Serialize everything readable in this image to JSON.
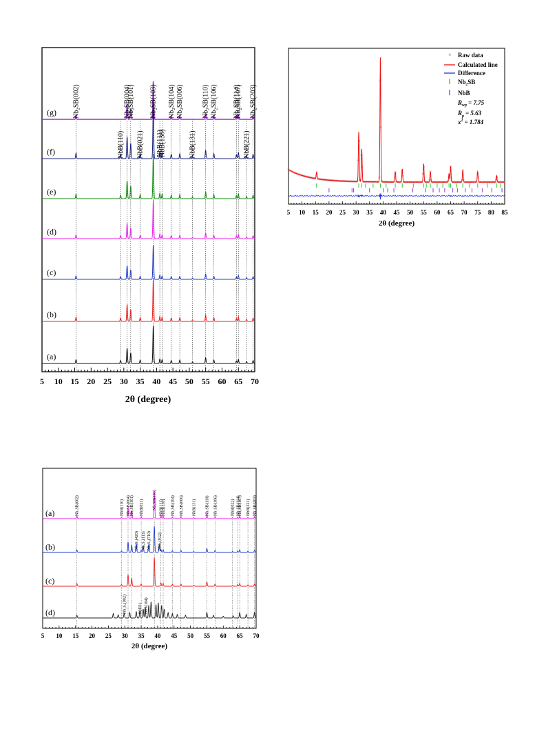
{
  "chart_data": [
    {
      "type": "line",
      "xlabel": "2θ (degree)",
      "xlim": [
        5,
        70
      ],
      "xticks": [
        5,
        10,
        15,
        20,
        25,
        30,
        35,
        40,
        45,
        50,
        55,
        60,
        65,
        70
      ],
      "series": [
        {
          "name": "(g)",
          "color": "#9933cc"
        },
        {
          "name": "(f)",
          "color": "#1a237e"
        },
        {
          "name": "(e)",
          "color": "#138a13"
        },
        {
          "name": "(d)",
          "color": "#ee22ee"
        },
        {
          "name": "(c)",
          "color": "#1f3bcc"
        },
        {
          "name": "(b)",
          "color": "#ee2222"
        },
        {
          "name": "(a)",
          "color": "#111111"
        }
      ],
      "peaks_nb2sb": [
        {
          "x": 15.4,
          "h": 0.1,
          "label": "Nb₂SB(002)"
        },
        {
          "x": 31.0,
          "h": 0.4,
          "label": "Nb₂SB(004)"
        },
        {
          "x": 32.1,
          "h": 0.28,
          "label": "Nb₂SB(101)"
        },
        {
          "x": 39.0,
          "h": 1.0,
          "label": "Nb₂SB(103)"
        },
        {
          "x": 44.5,
          "h": 0.08,
          "label": "Nb₂SB(104)"
        },
        {
          "x": 47.1,
          "h": 0.09,
          "label": "Nb₂SB(006)"
        },
        {
          "x": 55.0,
          "h": 0.15,
          "label": "Nb₂SB(110)"
        },
        {
          "x": 57.5,
          "h": 0.09,
          "label": "Nb₂SB(106)"
        },
        {
          "x": 64.4,
          "h": 0.07,
          "label": "Nb₂SB(114)"
        },
        {
          "x": 65.0,
          "h": 0.11,
          "label": "Nb₂SB(107)"
        },
        {
          "x": 69.5,
          "h": 0.08,
          "label": "Nb₂SB(203)"
        }
      ],
      "peaks_nbb": [
        {
          "x": 29.0,
          "h": 0.08,
          "label": "NbB(110)"
        },
        {
          "x": 35.0,
          "h": 0.09,
          "label": "NbB(021)"
        },
        {
          "x": 41.0,
          "h": 0.12,
          "label": "NbB(111)"
        },
        {
          "x": 41.7,
          "h": 0.1,
          "label": "NbB(130)"
        },
        {
          "x": 51.0,
          "h": 0.04,
          "label": "NbB(131)"
        },
        {
          "x": 67.5,
          "h": 0.05,
          "label": "NbB(221)"
        }
      ]
    },
    {
      "type": "line",
      "xlabel": "2θ (degree)",
      "xlim": [
        5,
        85
      ],
      "xticks": [
        5,
        10,
        15,
        20,
        25,
        30,
        35,
        40,
        45,
        50,
        55,
        60,
        65,
        70,
        75,
        80,
        85
      ],
      "legend": [
        "Raw data",
        "Calculated line",
        "Difference",
        "Nb₂SB",
        "NbB"
      ],
      "stats": {
        "rwp": "R<sub>wp</sub> = 7.75",
        "rp": "R<sub>p</sub> = 5.63",
        "chi": "x² = 1.784"
      },
      "stats_text": {
        "rwp_k": "R",
        "rwp_s": "wp",
        "rwp_v": "= 7.75",
        "rp_k": "R",
        "rp_s": "p",
        "rp_v": "= 5.63",
        "chi_k": "x",
        "chi_s": "2",
        "chi_v": "= 1.784"
      },
      "series_colors": {
        "raw": "#cc3333",
        "calc": "#ee1111",
        "diff": "#2233dd",
        "nb2sb": "#22cc22",
        "nbb": "#9933cc"
      }
    },
    {
      "type": "line",
      "xlabel": "2θ (degree)",
      "xlim": [
        5,
        70
      ],
      "xticks": [
        5,
        10,
        15,
        20,
        25,
        30,
        35,
        40,
        45,
        50,
        55,
        60,
        65,
        70
      ],
      "series": [
        {
          "name": "(a)",
          "color": "#ee22ee"
        },
        {
          "name": "(b)",
          "color": "#1f3bcc"
        },
        {
          "name": "(c)",
          "color": "#ee2222"
        },
        {
          "name": "(d)",
          "color": "#222222"
        }
      ],
      "labels_a": [
        "Nb₂SB(002)",
        "NbB(110)",
        "Nb₂SB(004)",
        "Nb₂SB(101)",
        "NbB(021)",
        "Nb₂SB(103)",
        "NbB(111)",
        "NbB(130)",
        "Nb₂SB(104)",
        "Nb₂SB(006)",
        "NbB(131)",
        "Nb₂SB(110)",
        "Nb₂SB(106)",
        "NbB(022)",
        "Nb₂SB(114)",
        "Nb₂SB(107)",
        "NbB(221)",
        "Nb₂SB(203)"
      ],
      "labels_b": [
        "Nb₃S₄(420)",
        "Nb₃S₄(113)",
        "Nb₃S₄(710)",
        "NbS₂(012)"
      ],
      "labels_d": [
        "Nb₃S₄(002)",
        "S(411)",
        "NbS(104)"
      ]
    }
  ]
}
